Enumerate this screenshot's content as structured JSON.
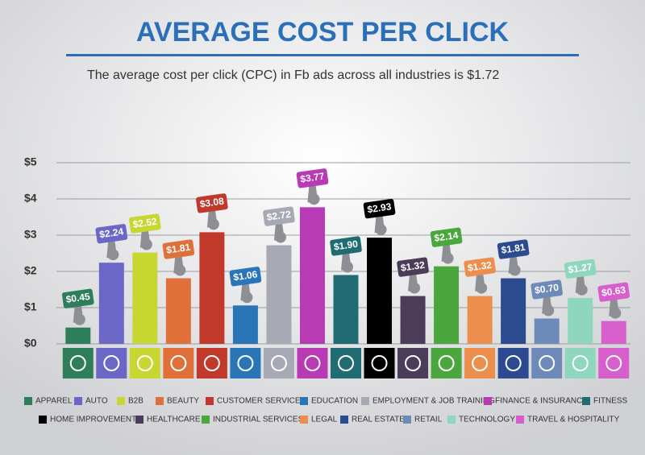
{
  "chart_data": {
    "type": "bar",
    "title": "AVERAGE COST PER CLICK",
    "subtitle": "The average cost per click (CPC) in Fb ads across all industries is $1.72",
    "categories": [
      "APPAREL",
      "AUTO",
      "B2B",
      "BEAUTY",
      "CUSTOMER SERVICES",
      "EDUCATION",
      "EMPLOYMENT & JOB TRAINING",
      "FINANCE & INSURANCE",
      "FITNESS",
      "HOME IMPROVEMENT",
      "HEALTHCARE",
      "INDUSTRIAL SERVICES",
      "LEGAL",
      "REAL ESTATE",
      "RETAIL",
      "TECHNOLOGY",
      "TRAVEL & HOSPITALITY"
    ],
    "values": [
      0.45,
      2.24,
      2.52,
      1.81,
      3.08,
      1.06,
      2.72,
      3.77,
      1.9,
      2.93,
      1.32,
      2.14,
      1.32,
      1.81,
      0.7,
      1.27,
      0.63
    ],
    "value_labels": [
      "$0.45",
      "$2.24",
      "$2.52",
      "$1.81",
      "$3.08",
      "$1.06",
      "$2.72",
      "$3.77",
      "$1.90",
      "$2.93",
      "$1.32",
      "$2.14",
      "$1.32",
      "$1.81",
      "$0.70",
      "$1.27",
      "$0.63"
    ],
    "colors": [
      "#2e7d5b",
      "#6a67c7",
      "#c8d632",
      "#e0703a",
      "#c0392b",
      "#2a75b8",
      "#a7a9b4",
      "#b83ab5",
      "#216b73",
      "#000000",
      "#4b3d5a",
      "#4aa63d",
      "#ec8e4d",
      "#2c4a8f",
      "#6e8ab8",
      "#8fd6bf",
      "#d75fcc"
    ],
    "ylim": [
      0,
      5
    ],
    "yticks": [
      {
        "value": 0,
        "label": "$0"
      },
      {
        "value": 1,
        "label": "$1"
      },
      {
        "value": 2,
        "label": "$2"
      },
      {
        "value": 3,
        "label": "$3"
      },
      {
        "value": 4,
        "label": "$4"
      },
      {
        "value": 5,
        "label": "$5"
      }
    ],
    "grid": true
  }
}
